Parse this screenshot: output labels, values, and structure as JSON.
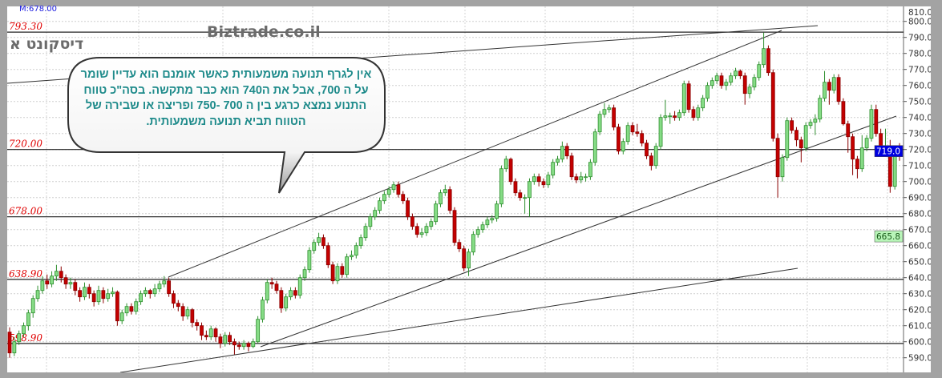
{
  "header": {
    "marker_label": "M:678.00",
    "symbol_name": "דיסקונט א",
    "watermark": "Biztrade.co.il"
  },
  "annotation": {
    "text": "אין לגרף תנועה משמעותית כאשר    אומנם  הוא עדיין  שומר  על  ה 700,  אבל את ה740  הוא  כבר מתקשה. בסה\"כ  טווח  התנוע  נמצא  כרגע  בין  ה 700 -750 ופריצה  או שבירה של הטווח  תביא תנועה   משמעותית."
  },
  "chart_data": {
    "type": "candlestick",
    "ylim": [
      585,
      810
    ],
    "y_ticks": [
      "590.0",
      "600.0",
      "610.0",
      "620.0",
      "630.0",
      "640.0",
      "650.0",
      "660.0",
      "670.0",
      "680.0",
      "690.0",
      "700.0",
      "710.0",
      "720.0",
      "730.0",
      "740.0",
      "750.0",
      "760.0",
      "770.0",
      "780.0",
      "790.0",
      "800.0",
      "810.0"
    ],
    "grid": true,
    "colors": {
      "up": "#86dc86",
      "up_border": "#2f8f2f",
      "down": "#c40000",
      "down_border": "#8a0000",
      "level_label": "#e00000"
    },
    "levels": [
      {
        "value": 793.3,
        "label": "793.30"
      },
      {
        "value": 720.0,
        "label": "720.00"
      },
      {
        "value": 678.0,
        "label": "678.00"
      },
      {
        "value": 638.9,
        "label": "638.90"
      },
      {
        "value": 598.9,
        "label": "598.90"
      }
    ],
    "price_tags": [
      {
        "value": 719.0,
        "label": "719.0",
        "bg": "#0000e0",
        "fg": "#ffffff"
      },
      {
        "value": 665.8,
        "label": "665.8",
        "bg": "#b8f5b8",
        "fg": "#1a5a1a"
      }
    ],
    "candles_ohlc": [
      [
        606,
        609,
        590,
        593
      ],
      [
        593,
        603,
        591,
        600
      ],
      [
        600,
        607,
        598,
        605
      ],
      [
        605,
        612,
        603,
        610
      ],
      [
        610,
        620,
        607,
        618
      ],
      [
        618,
        629,
        615,
        627
      ],
      [
        627,
        635,
        625,
        632
      ],
      [
        632,
        641,
        630,
        638
      ],
      [
        638,
        642,
        633,
        636
      ],
      [
        636,
        644,
        634,
        641
      ],
      [
        641,
        648,
        638,
        644
      ],
      [
        644,
        647,
        637,
        640
      ],
      [
        640,
        642,
        633,
        636
      ],
      [
        636,
        640,
        633,
        637
      ],
      [
        637,
        639,
        629,
        632
      ],
      [
        632,
        634,
        625,
        628
      ],
      [
        628,
        637,
        626,
        634
      ],
      [
        634,
        636,
        627,
        630
      ],
      [
        630,
        632,
        622,
        625
      ],
      [
        625,
        635,
        623,
        632
      ],
      [
        632,
        634,
        624,
        627
      ],
      [
        627,
        633,
        625,
        630
      ],
      [
        630,
        634,
        628,
        631
      ],
      [
        631,
        632,
        610,
        613
      ],
      [
        613,
        620,
        611,
        618
      ],
      [
        618,
        624,
        616,
        622
      ],
      [
        622,
        624,
        617,
        619
      ],
      [
        619,
        627,
        617,
        625
      ],
      [
        625,
        632,
        623,
        630
      ],
      [
        630,
        634,
        628,
        632
      ],
      [
        632,
        633,
        627,
        630
      ],
      [
        630,
        636,
        628,
        633
      ],
      [
        633,
        638,
        631,
        636
      ],
      [
        636,
        641,
        634,
        638
      ],
      [
        638,
        640,
        628,
        630
      ],
      [
        630,
        632,
        621,
        624
      ],
      [
        624,
        626,
        619,
        622
      ],
      [
        622,
        624,
        613,
        616
      ],
      [
        616,
        622,
        614,
        620
      ],
      [
        620,
        621,
        609,
        612
      ],
      [
        612,
        614,
        607,
        610
      ],
      [
        610,
        612,
        601,
        604
      ],
      [
        604,
        607,
        601,
        603
      ],
      [
        603,
        610,
        601,
        608
      ],
      [
        608,
        609,
        600,
        603
      ],
      [
        603,
        605,
        596,
        599
      ],
      [
        599,
        606,
        597,
        604
      ],
      [
        604,
        606,
        598,
        600
      ],
      [
        600,
        602,
        592,
        598
      ],
      [
        598,
        600,
        595,
        597
      ],
      [
        597,
        601,
        595,
        599
      ],
      [
        599,
        600,
        594,
        597
      ],
      [
        597,
        602,
        596,
        600
      ],
      [
        600,
        616,
        599,
        614
      ],
      [
        614,
        628,
        612,
        626
      ],
      [
        626,
        639,
        624,
        637
      ],
      [
        637,
        640,
        633,
        636
      ],
      [
        636,
        638,
        630,
        632
      ],
      [
        632,
        634,
        618,
        621
      ],
      [
        621,
        630,
        619,
        628
      ],
      [
        628,
        634,
        626,
        632
      ],
      [
        632,
        634,
        627,
        629
      ],
      [
        629,
        642,
        627,
        640
      ],
      [
        640,
        647,
        638,
        645
      ],
      [
        645,
        659,
        643,
        657
      ],
      [
        657,
        664,
        655,
        662
      ],
      [
        662,
        668,
        660,
        665
      ],
      [
        665,
        667,
        658,
        660
      ],
      [
        660,
        662,
        646,
        648
      ],
      [
        648,
        650,
        636,
        638
      ],
      [
        638,
        649,
        636,
        647
      ],
      [
        647,
        649,
        640,
        642
      ],
      [
        642,
        655,
        640,
        653
      ],
      [
        653,
        657,
        651,
        654
      ],
      [
        654,
        662,
        652,
        660
      ],
      [
        660,
        667,
        658,
        665
      ],
      [
        665,
        674,
        663,
        672
      ],
      [
        672,
        680,
        670,
        678
      ],
      [
        678,
        684,
        676,
        682
      ],
      [
        682,
        690,
        680,
        688
      ],
      [
        688,
        694,
        686,
        692
      ],
      [
        692,
        697,
        690,
        695
      ],
      [
        695,
        700,
        693,
        698
      ],
      [
        698,
        700,
        690,
        692
      ],
      [
        692,
        694,
        686,
        688
      ],
      [
        688,
        690,
        676,
        678
      ],
      [
        678,
        680,
        670,
        672
      ],
      [
        672,
        674,
        665,
        667
      ],
      [
        667,
        671,
        665,
        668
      ],
      [
        668,
        674,
        666,
        672
      ],
      [
        672,
        677,
        670,
        675
      ],
      [
        675,
        688,
        673,
        686
      ],
      [
        686,
        695,
        684,
        693
      ],
      [
        693,
        698,
        691,
        695
      ],
      [
        695,
        697,
        680,
        682
      ],
      [
        682,
        684,
        660,
        662
      ],
      [
        662,
        664,
        656,
        658
      ],
      [
        658,
        660,
        644,
        646
      ],
      [
        646,
        658,
        641,
        656
      ],
      [
        656,
        669,
        654,
        667
      ],
      [
        667,
        672,
        665,
        670
      ],
      [
        670,
        675,
        668,
        673
      ],
      [
        673,
        678,
        671,
        676
      ],
      [
        676,
        679,
        674,
        677
      ],
      [
        677,
        688,
        675,
        686
      ],
      [
        686,
        710,
        684,
        708
      ],
      [
        708,
        716,
        706,
        714
      ],
      [
        714,
        715,
        698,
        700
      ],
      [
        700,
        702,
        691,
        693
      ],
      [
        693,
        695,
        688,
        690
      ],
      [
        690,
        692,
        680,
        690
      ],
      [
        690,
        702,
        678,
        700
      ],
      [
        700,
        705,
        698,
        703
      ],
      [
        703,
        705,
        697,
        700
      ],
      [
        700,
        702,
        696,
        698
      ],
      [
        698,
        706,
        696,
        704
      ],
      [
        704,
        714,
        702,
        712
      ],
      [
        712,
        716,
        710,
        714
      ],
      [
        714,
        725,
        712,
        722
      ],
      [
        722,
        724,
        714,
        716
      ],
      [
        716,
        718,
        701,
        703
      ],
      [
        703,
        705,
        699,
        701
      ],
      [
        701,
        706,
        699,
        703
      ],
      [
        703,
        705,
        700,
        703
      ],
      [
        703,
        714,
        701,
        712
      ],
      [
        712,
        733,
        710,
        731
      ],
      [
        731,
        744,
        729,
        742
      ],
      [
        742,
        749,
        740,
        745
      ],
      [
        745,
        748,
        743,
        746
      ],
      [
        746,
        748,
        732,
        734
      ],
      [
        734,
        736,
        717,
        719
      ],
      [
        719,
        727,
        717,
        725
      ],
      [
        725,
        737,
        723,
        735
      ],
      [
        735,
        737,
        729,
        731
      ],
      [
        731,
        736,
        728,
        730
      ],
      [
        730,
        732,
        722,
        724
      ],
      [
        724,
        726,
        714,
        716
      ],
      [
        716,
        718,
        707,
        710
      ],
      [
        710,
        724,
        708,
        722
      ],
      [
        722,
        742,
        720,
        740
      ],
      [
        740,
        751,
        738,
        741
      ],
      [
        741,
        743,
        736,
        741
      ],
      [
        741,
        744,
        738,
        740
      ],
      [
        740,
        745,
        738,
        743
      ],
      [
        743,
        763,
        741,
        761
      ],
      [
        761,
        763,
        743,
        745
      ],
      [
        745,
        747,
        738,
        740
      ],
      [
        740,
        748,
        738,
        746
      ],
      [
        746,
        754,
        744,
        752
      ],
      [
        752,
        762,
        750,
        760
      ],
      [
        760,
        765,
        758,
        763
      ],
      [
        763,
        768,
        761,
        766
      ],
      [
        766,
        768,
        758,
        760
      ],
      [
        760,
        764,
        757,
        762
      ],
      [
        762,
        768,
        760,
        766
      ],
      [
        766,
        771,
        764,
        769
      ],
      [
        769,
        770,
        764,
        766
      ],
      [
        766,
        768,
        748,
        755
      ],
      [
        755,
        761,
        752,
        759
      ],
      [
        759,
        767,
        757,
        765
      ],
      [
        765,
        775,
        763,
        773
      ],
      [
        773,
        793,
        771,
        783
      ],
      [
        783,
        785,
        766,
        768
      ],
      [
        768,
        770,
        725,
        727
      ],
      [
        727,
        730,
        690,
        703
      ],
      [
        703,
        717,
        700,
        715
      ],
      [
        715,
        740,
        713,
        738
      ],
      [
        738,
        740,
        730,
        732
      ],
      [
        732,
        734,
        722,
        726
      ],
      [
        726,
        728,
        712,
        721
      ],
      [
        721,
        737,
        719,
        735
      ],
      [
        735,
        739,
        733,
        737
      ],
      [
        737,
        742,
        729,
        739
      ],
      [
        739,
        754,
        737,
        752
      ],
      [
        752,
        769,
        750,
        762
      ],
      [
        762,
        764,
        748,
        757
      ],
      [
        757,
        767,
        755,
        765
      ],
      [
        765,
        767,
        748,
        750
      ],
      [
        750,
        752,
        735,
        736
      ],
      [
        736,
        738,
        718,
        728
      ],
      [
        728,
        730,
        704,
        714
      ],
      [
        714,
        716,
        702,
        708
      ],
      [
        708,
        729,
        706,
        721
      ],
      [
        721,
        729,
        719,
        727
      ],
      [
        727,
        748,
        725,
        745
      ],
      [
        745,
        748,
        728,
        730
      ],
      [
        730,
        733,
        716,
        718
      ],
      [
        718,
        733,
        716,
        721
      ],
      [
        721,
        726,
        693,
        697
      ],
      [
        697,
        718,
        695,
        717
      ],
      [
        720,
        724,
        713,
        719
      ]
    ]
  }
}
